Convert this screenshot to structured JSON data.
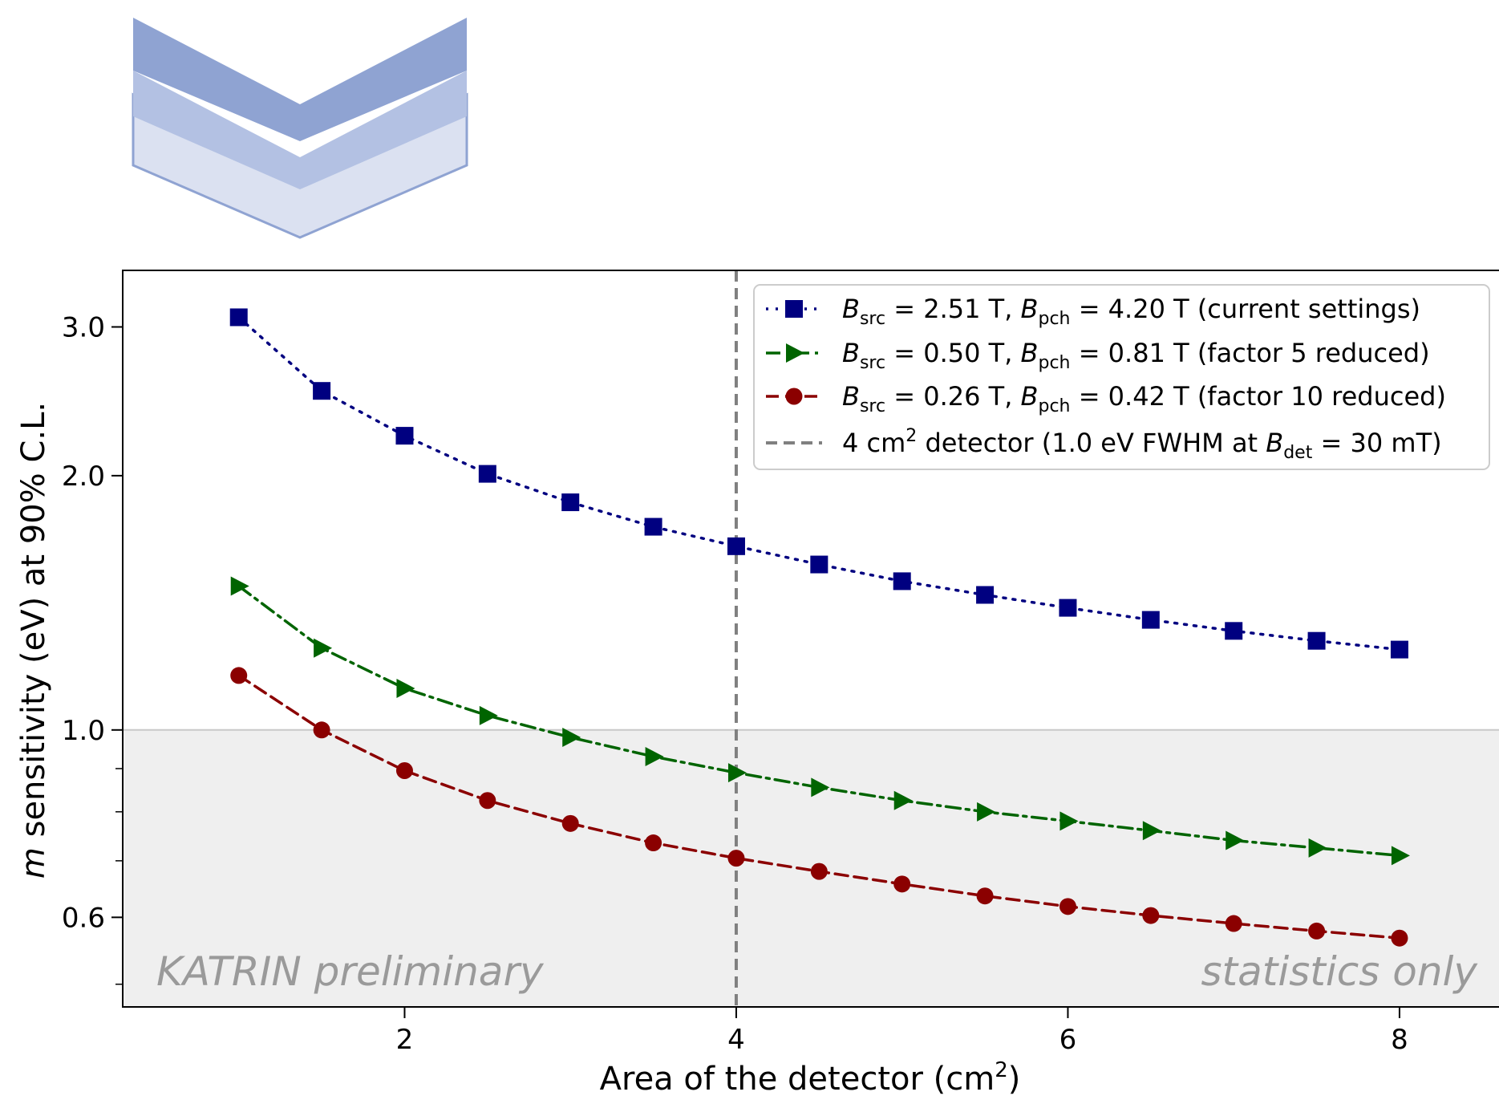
{
  "chart_data": {
    "type": "line",
    "xlabel": "Area of the detector (cm²)",
    "ylabel": "m sensitivity (eV) at 90% C.L.",
    "y_scale": "log",
    "xlim": [
      0.3,
      8.6
    ],
    "ylim": [
      0.47,
      3.5
    ],
    "x_ticks": [
      2,
      4,
      6,
      8
    ],
    "x_tick_labels": [
      "2",
      "4",
      "6",
      "8"
    ],
    "y_ticks": [
      0.6,
      1.0,
      2.0,
      3.0
    ],
    "y_tick_labels": [
      "0.6",
      "1.0",
      "2.0",
      "3.0"
    ],
    "y_minor_ticks": [
      0.5,
      0.7,
      0.8,
      0.9
    ],
    "grid": false,
    "legend_position": "top-right",
    "shaded_region": {
      "y_from": 0.47,
      "y_to": 1.0,
      "color": "#efefef",
      "line_at": 1.0
    },
    "vertical_line": {
      "x": 4,
      "label": "4 cm² detector (1.0 eV FWHM at Bdet = 30 mT)",
      "color": "#808080"
    },
    "x": [
      1.0,
      1.5,
      2.0,
      2.5,
      3.0,
      3.5,
      4.0,
      4.5,
      5.0,
      5.5,
      6.0,
      6.5,
      7.0,
      7.5,
      8.0
    ],
    "series": [
      {
        "name": "Bsrc = 2.51 T, Bpch = 4.20 T (current settings)",
        "color": "#000080",
        "marker": "square",
        "linestyle": "dotted",
        "values": [
          3.08,
          2.52,
          2.23,
          2.01,
          1.86,
          1.74,
          1.65,
          1.57,
          1.5,
          1.445,
          1.395,
          1.35,
          1.31,
          1.275,
          1.245
        ]
      },
      {
        "name": "Bsrc = 0.50 T, Bpch = 0.81 T (factor 5 reduced)",
        "color": "#006400",
        "marker": "triangle-right",
        "linestyle": "dashdot",
        "values": [
          1.48,
          1.25,
          1.12,
          1.04,
          0.98,
          0.93,
          0.89,
          0.855,
          0.825,
          0.8,
          0.78,
          0.76,
          0.74,
          0.725,
          0.71
        ]
      },
      {
        "name": "Bsrc = 0.26 T, Bpch = 0.42 T (factor 10 reduced)",
        "color": "#8b0000",
        "marker": "circle",
        "linestyle": "dashed",
        "values": [
          1.16,
          1.0,
          0.895,
          0.825,
          0.775,
          0.735,
          0.705,
          0.68,
          0.657,
          0.636,
          0.618,
          0.603,
          0.59,
          0.578,
          0.567
        ]
      }
    ],
    "annotations": [
      "KATRIN preliminary",
      "statistics only"
    ]
  },
  "legend": {
    "entries": [
      {
        "pre": "B",
        "sub": "src",
        "mid1": " = 2.51 T, ",
        "pre2": "B",
        "sub2": "pch",
        "mid2": " = 4.20 T (current settings)"
      },
      {
        "pre": "B",
        "sub": "src",
        "mid1": " = 0.50 T, ",
        "pre2": "B",
        "sub2": "pch",
        "mid2": " = 0.81 T (factor 5 reduced)"
      },
      {
        "pre": "B",
        "sub": "src",
        "mid1": " = 0.26 T, ",
        "pre2": "B",
        "sub2": "pch",
        "mid2": " = 0.42 T (factor 10 reduced)"
      }
    ],
    "detector_entry": {
      "a": "4 cm",
      "sup": "2",
      "b": " detector (1.0 eV FWHM at ",
      "c": "B",
      "sub": "det",
      "d": " = 30 mT)"
    }
  },
  "axis_text": {
    "x_main": "Area of the detector (cm",
    "x_sup": "2",
    "x_end": ")",
    "y_italic": "m",
    "y_rest": " sensitivity (eV) at 90% C.L."
  },
  "watermarks": {
    "left": "KATRIN preliminary",
    "right": "statistics only"
  },
  "logo_colors": {
    "dark": "#8fa3d2",
    "mid": "#b3c1e3",
    "light": "#dbe1f1",
    "edge": "#8fa3d2"
  }
}
